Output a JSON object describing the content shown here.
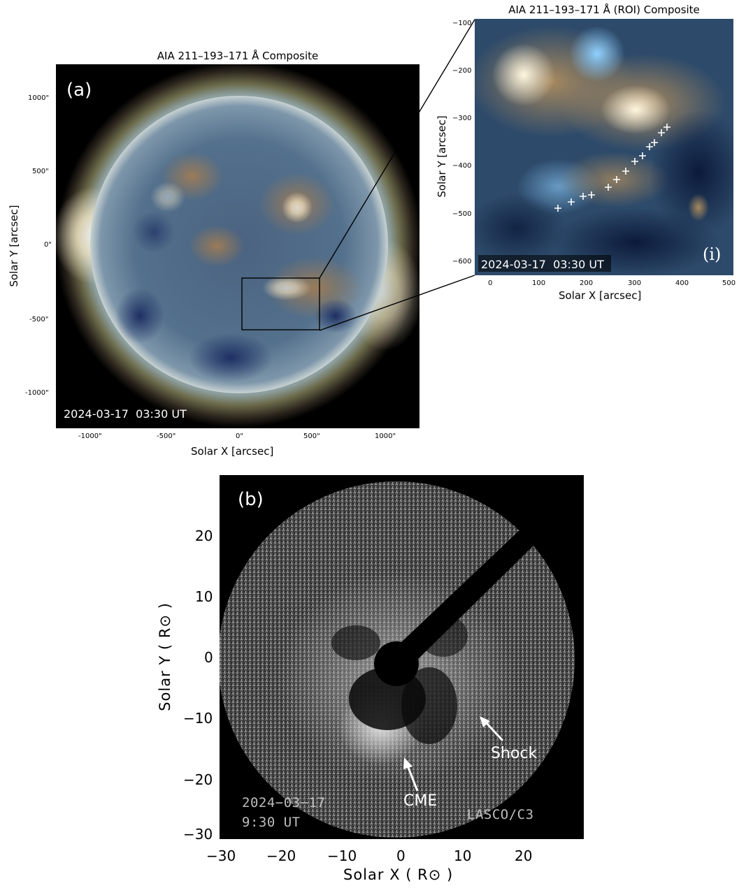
{
  "panel_a": {
    "title": "AIA 211–193–171 Å Composite",
    "label": "(a)",
    "timestamp": "2024-03-17  03:30 UT",
    "xlabel": "Solar X [arcsec]",
    "ylabel": "Solar Y [arcsec]",
    "xticks": [
      "-1000\"",
      "-500\"",
      "0\"",
      "500\"",
      "1000\""
    ],
    "yticks": [
      "1000\"",
      "500\"",
      "0\"",
      "-500\"",
      "-1000\""
    ]
  },
  "panel_i": {
    "title": "AIA 211–193–171 Å (ROI) Composite",
    "label": "(i)",
    "timestamp": "2024-03-17  03:30 UT",
    "xlabel": "Solar X [arcsec]",
    "ylabel": "Solar Y [arcsec]",
    "xticks": [
      "0",
      "100",
      "200",
      "300",
      "400",
      "500"
    ],
    "yticks": [
      "−100",
      "−200",
      "−300",
      "−400",
      "−500",
      "−600"
    ]
  },
  "panel_b": {
    "label": "(b)",
    "timestamp_line1": "2024−03−17",
    "timestamp_line2": "9:30 UT",
    "instrument": "LASCO/C3",
    "cme_label": "CME",
    "shock_label": "Shock",
    "xlabel": "Solar X ( R⊙ )",
    "ylabel": "Solar Y ( R⊙ )",
    "xticks": [
      "−30",
      "−20",
      "−10",
      "0",
      "10",
      "20"
    ],
    "yticks": [
      "20",
      "10",
      "0",
      "−10",
      "−20",
      "−30"
    ]
  }
}
